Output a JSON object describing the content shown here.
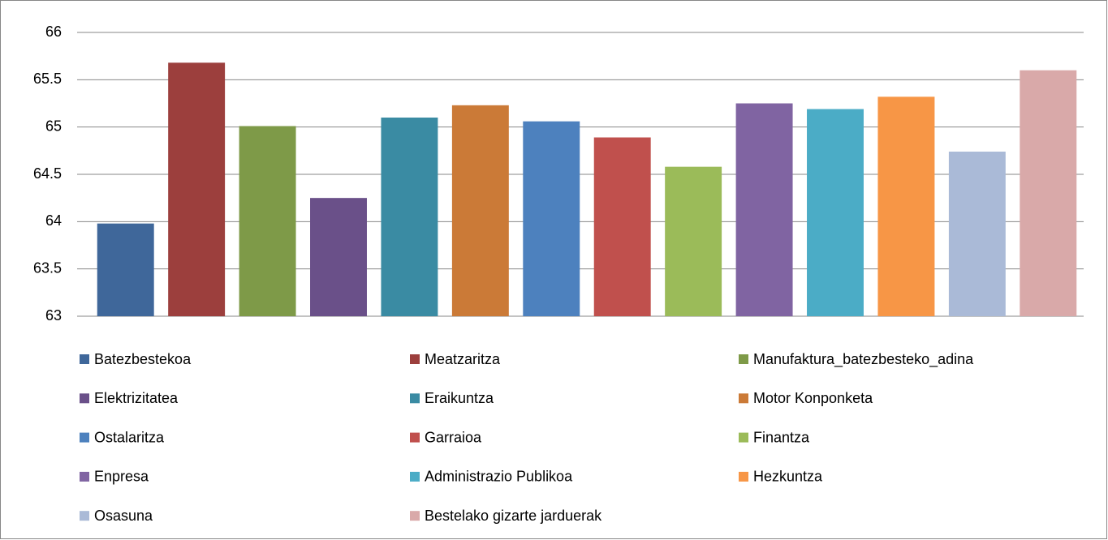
{
  "chart_data": {
    "type": "bar",
    "categories": [
      null
    ],
    "series": [
      {
        "name": "Batezbestekoa",
        "color": "#3f679a",
        "values": [
          63.98
        ]
      },
      {
        "name": "Meatzaritza",
        "color": "#9c3f3d",
        "values": [
          65.68
        ]
      },
      {
        "name": "Manufaktura_batezbesteko_adina",
        "color": "#7e9a48",
        "values": [
          65.01
        ]
      },
      {
        "name": "Elektrizitatea",
        "color": "#6a5089",
        "values": [
          64.25
        ]
      },
      {
        "name": "Eraikuntza",
        "color": "#3a8ba3",
        "values": [
          65.1
        ]
      },
      {
        "name": "Motor Konponketa",
        "color": "#cb7a37",
        "values": [
          65.23
        ]
      },
      {
        "name": "Ostalaritza",
        "color": "#4d81be",
        "values": [
          65.06
        ]
      },
      {
        "name": "Garraioa",
        "color": "#c0504d",
        "values": [
          64.89
        ]
      },
      {
        "name": "Finantza",
        "color": "#9bbb59",
        "values": [
          64.58
        ]
      },
      {
        "name": "Enpresa",
        "color": "#8064a2",
        "values": [
          65.25
        ]
      },
      {
        "name": "Administrazio Publikoa",
        "color": "#4bacc6",
        "values": [
          65.19
        ]
      },
      {
        "name": "Hezkuntza",
        "color": "#f79646",
        "values": [
          65.32
        ]
      },
      {
        "name": "Osasuna",
        "color": "#aabad7",
        "values": [
          64.74
        ]
      },
      {
        "name": "Bestelako gizarte jarduerak",
        "color": "#d9a9a9",
        "values": [
          65.6
        ]
      }
    ],
    "ylim": [
      63,
      66
    ],
    "yticks": [
      63,
      63.5,
      64,
      64.5,
      65,
      65.5,
      66
    ],
    "grid": true
  }
}
